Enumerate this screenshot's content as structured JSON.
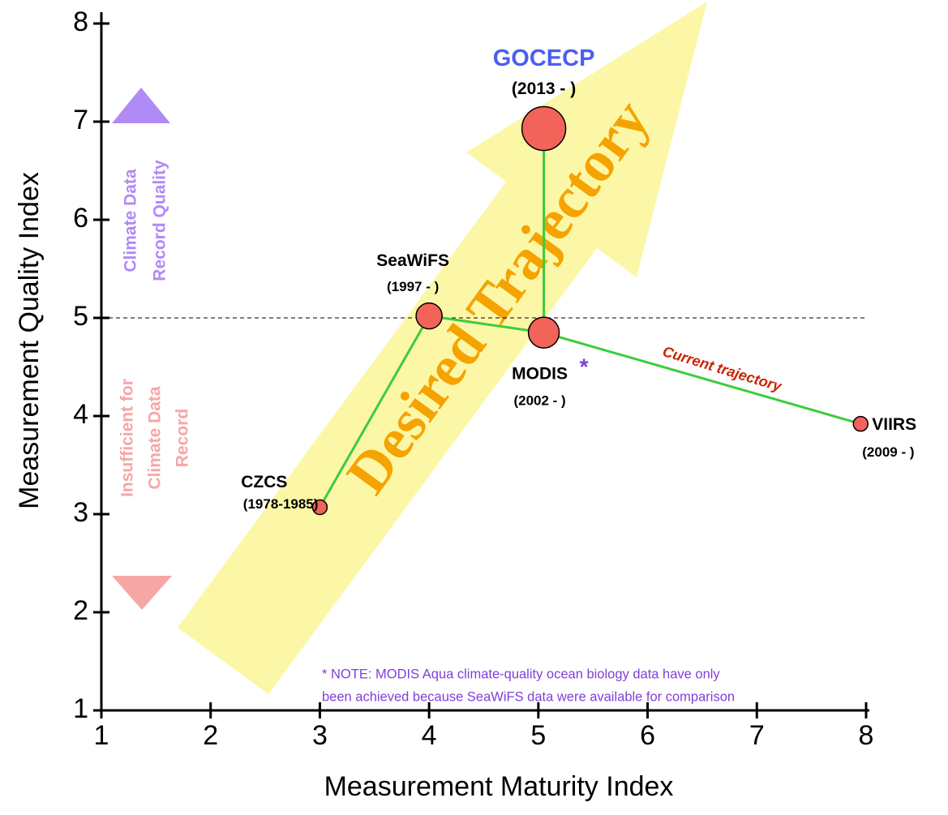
{
  "chart_data": {
    "type": "bubble",
    "x_label": "Measurement Maturity Index",
    "y_label": "Measurement Quality Index",
    "xlim": [
      1,
      8
    ],
    "ylim": [
      1,
      8
    ],
    "xticks": [
      1,
      2,
      3,
      4,
      5,
      6,
      7,
      8
    ],
    "yticks": [
      1,
      2,
      3,
      4,
      5,
      6,
      7,
      8
    ],
    "reference_line": 5,
    "names": [
      "CZCS",
      "SeaWiFS",
      "MODIS",
      "GOCECP",
      "VIIRS"
    ],
    "years": [
      "(1978-1985)",
      "(1997 - )",
      "(2002 - )",
      "(2013 - )",
      "(2009 - )"
    ],
    "x": [
      3,
      4,
      5.05,
      5.05,
      7.95
    ],
    "values": [
      3.07,
      5.02,
      4.85,
      6.93,
      3.92
    ],
    "sizes": [
      9,
      16,
      19,
      27,
      9
    ],
    "color": "#f2635a",
    "line_color": "#3ccc3c",
    "note_mark": "*",
    "annotations": {
      "quality_up": [
        "Climate Data",
        "Record Quality"
      ],
      "quality_down": [
        "Insufficient for",
        "Climate Data",
        "Record"
      ],
      "desired": "Desired Trajectory",
      "current": "Current trajectory",
      "note": [
        "* NOTE: MODIS Aqua climate-quality ocean biology data have only",
        "been achieved because SeaWiFS data were available for comparison"
      ]
    }
  }
}
